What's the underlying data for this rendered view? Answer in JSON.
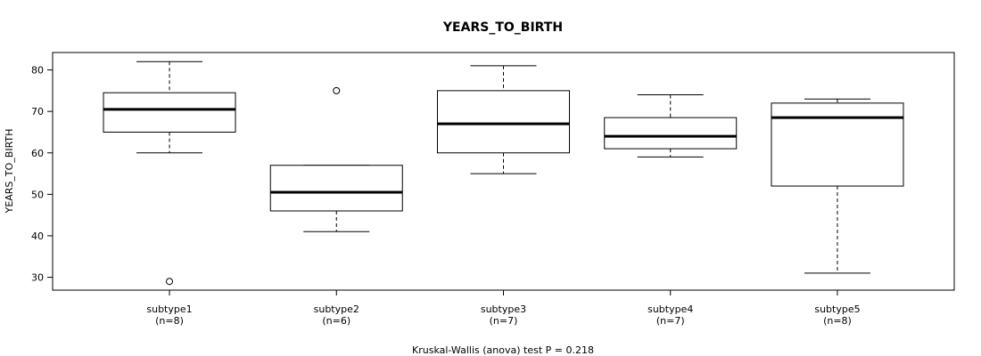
{
  "chart_data": {
    "type": "boxplot",
    "title": "YEARS_TO_BIRTH",
    "ylabel": "YEARS_TO_BIRTH",
    "xlabel": "",
    "ylim": [
      26.9,
      84.2
    ],
    "yticks": [
      30,
      40,
      50,
      60,
      70,
      80
    ],
    "grid": false,
    "footnote": "Kruskal-Wallis (anova) test P = 0.218",
    "categories": [
      {
        "name": "subtype1",
        "n_label": "(n=8)",
        "whisker_low": 60,
        "q1": 65,
        "median": 70.5,
        "q3": 74.5,
        "whisker_high": 82,
        "outliers": [
          29
        ]
      },
      {
        "name": "subtype2",
        "n_label": "(n=6)",
        "whisker_low": 41,
        "q1": 46,
        "median": 50.5,
        "q3": 57,
        "whisker_high": 57,
        "outliers": [
          75
        ]
      },
      {
        "name": "subtype3",
        "n_label": "(n=7)",
        "whisker_low": 55,
        "q1": 60,
        "median": 67,
        "q3": 75,
        "whisker_high": 81,
        "outliers": []
      },
      {
        "name": "subtype4",
        "n_label": "(n=7)",
        "whisker_low": 59,
        "q1": 61,
        "median": 64,
        "q3": 68.5,
        "whisker_high": 74,
        "outliers": []
      },
      {
        "name": "subtype5",
        "n_label": "(n=8)",
        "whisker_low": 31,
        "q1": 52,
        "median": 68.5,
        "q3": 72,
        "whisker_high": 73,
        "outliers": []
      }
    ]
  }
}
